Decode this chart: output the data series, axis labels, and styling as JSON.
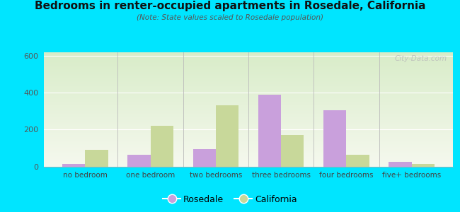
{
  "title": "Bedrooms in renter-occupied apartments in Rosedale, California",
  "subtitle": "(Note: State values scaled to Rosedale population)",
  "categories": [
    "no bedroom",
    "one bedroom",
    "two bedrooms",
    "three bedrooms",
    "four bedrooms",
    "five+ bedrooms"
  ],
  "rosedale": [
    15,
    65,
    95,
    390,
    305,
    25
  ],
  "california": [
    90,
    220,
    330,
    170,
    62,
    12
  ],
  "rosedale_color": "#c9a0dc",
  "california_color": "#c8d89a",
  "ylim": [
    0,
    620
  ],
  "yticks": [
    0,
    200,
    400,
    600
  ],
  "bg_outer": "#00e5ff",
  "watermark": "City-Data.com",
  "legend_rosedale": "Rosedale",
  "legend_california": "California",
  "bar_width": 0.35
}
